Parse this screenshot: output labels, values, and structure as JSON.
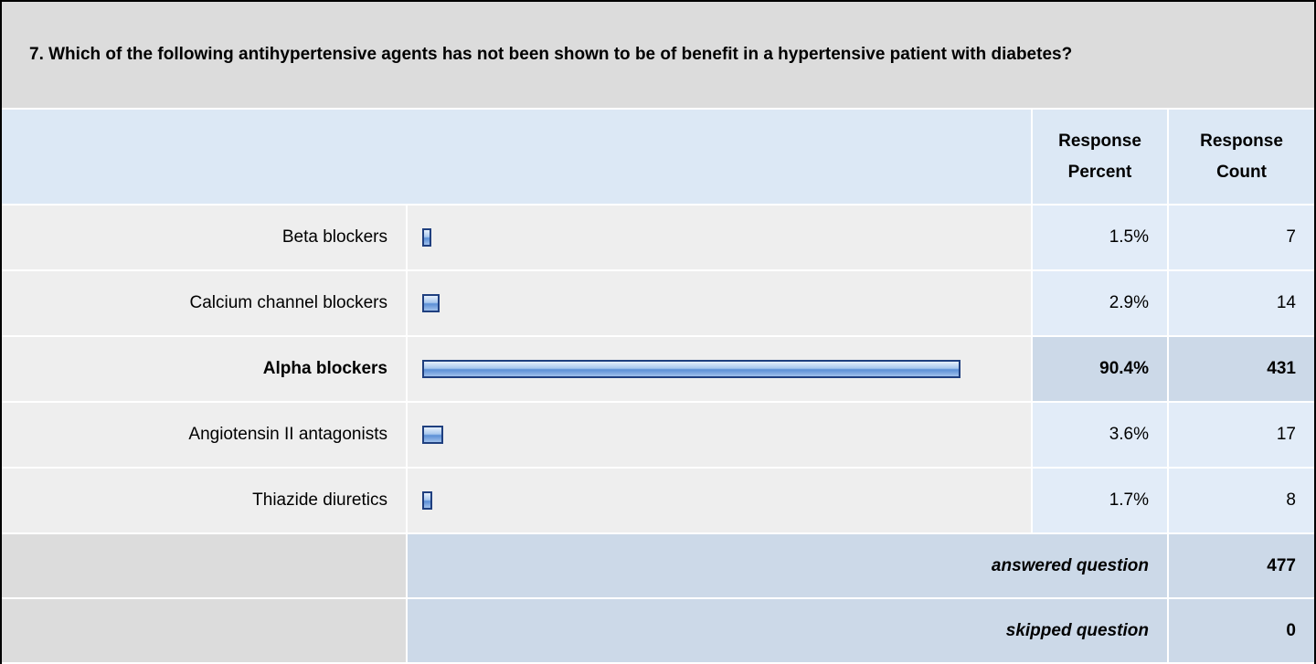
{
  "question": {
    "title": "7. Which of the following antihypertensive agents has not been shown to be of benefit in a hypertensive patient with diabetes?"
  },
  "header": {
    "percent": "Response Percent",
    "count": "Response Count"
  },
  "rows": [
    {
      "label": "Beta blockers",
      "percent": 1.5,
      "percent_label": "1.5%",
      "count": 7
    },
    {
      "label": "Calcium channel blockers",
      "percent": 2.9,
      "percent_label": "2.9%",
      "count": 14
    },
    {
      "label": "Alpha blockers",
      "percent": 90.4,
      "percent_label": "90.4%",
      "count": 431,
      "highlight": true
    },
    {
      "label": "Angiotensin II antagonists",
      "percent": 3.6,
      "percent_label": "3.6%",
      "count": 17
    },
    {
      "label": "Thiazide diuretics",
      "percent": 1.7,
      "percent_label": "1.7%",
      "count": 8
    }
  ],
  "summary": [
    {
      "label": "answered question",
      "count": 477
    },
    {
      "label": "skipped question",
      "count": 0
    }
  ]
}
